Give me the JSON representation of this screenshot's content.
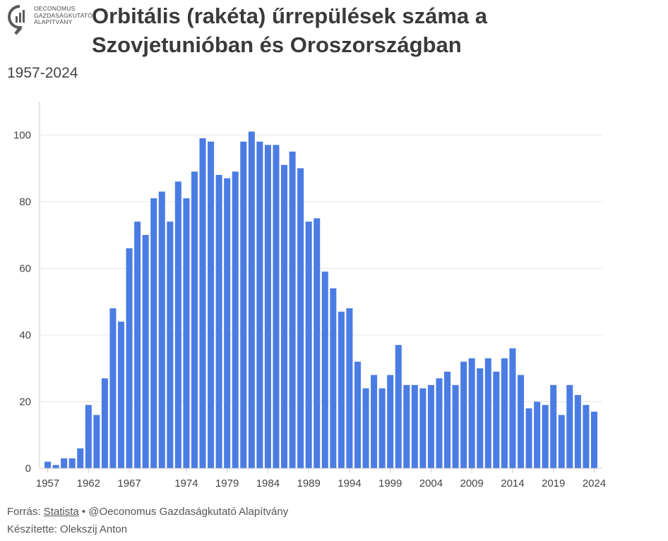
{
  "header": {
    "logo_text": [
      "OECONOMUS",
      "GAZDASÁGKUTATÓ",
      "ALAPÍTVÁNY"
    ],
    "title_line1": "Orbitális (rakéta) űrrepülések száma a",
    "title_line2": "Szovjetunióban és Oroszországban",
    "subtitle": "1957-2024"
  },
  "footer": {
    "source_prefix": "Forrás: ",
    "source_link": "Statista",
    "source_suffix": " • @Oeconomus Gazdaságkutató Alapítvány",
    "author": "Készítette: Olekszij Anton"
  },
  "colors": {
    "bar": "#4a7ce3",
    "grid": "#e6e6e6",
    "axis": "#cccccc",
    "text": "#444444"
  },
  "chart_data": {
    "type": "bar",
    "x": [
      1957,
      1958,
      1959,
      1960,
      1961,
      1962,
      1963,
      1964,
      1965,
      1966,
      1967,
      1968,
      1969,
      1970,
      1971,
      1972,
      1973,
      1974,
      1975,
      1976,
      1977,
      1978,
      1979,
      1980,
      1981,
      1982,
      1983,
      1984,
      1985,
      1986,
      1987,
      1988,
      1989,
      1990,
      1991,
      1992,
      1993,
      1994,
      1995,
      1996,
      1997,
      1998,
      1999,
      2000,
      2001,
      2002,
      2003,
      2004,
      2005,
      2006,
      2007,
      2008,
      2009,
      2010,
      2011,
      2012,
      2013,
      2014,
      2015,
      2016,
      2017,
      2018,
      2019,
      2020,
      2021,
      2022,
      2023,
      2024
    ],
    "values": [
      2,
      1,
      3,
      3,
      6,
      19,
      16,
      27,
      48,
      44,
      66,
      74,
      70,
      81,
      83,
      74,
      86,
      81,
      89,
      99,
      98,
      88,
      87,
      89,
      98,
      101,
      98,
      97,
      97,
      91,
      95,
      90,
      74,
      75,
      59,
      54,
      47,
      48,
      32,
      24,
      28,
      24,
      28,
      37,
      25,
      25,
      24,
      25,
      27,
      29,
      25,
      32,
      33,
      30,
      33,
      29,
      33,
      36,
      28,
      18,
      20,
      19,
      25,
      16,
      25,
      22,
      19,
      17
    ],
    "x_ticks": [
      1957,
      1962,
      1967,
      1974,
      1979,
      1984,
      1989,
      1994,
      1999,
      2004,
      2009,
      2014,
      2019,
      2024
    ],
    "y_ticks": [
      0,
      20,
      40,
      60,
      80,
      100
    ],
    "ylim": [
      0,
      110
    ],
    "title": "Orbitális (rakéta) űrrepülések száma a Szovjetunióban és Oroszországban",
    "subtitle": "1957-2024",
    "xlabel": "",
    "ylabel": "",
    "grid": true,
    "legend": false
  }
}
